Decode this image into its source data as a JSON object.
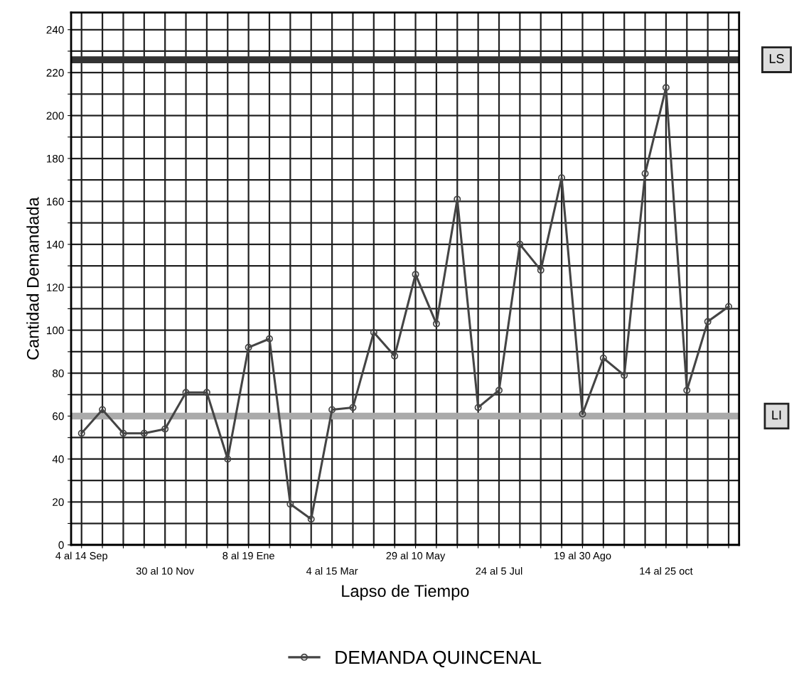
{
  "chart_data": {
    "type": "line",
    "xlabel": "Lapso de Tiempo",
    "ylabel": "Cantidad Demandada",
    "categories": [
      "4 al 14 Sep",
      null,
      null,
      null,
      "30 al 10 Nov",
      null,
      null,
      null,
      "8 al 19 Ene",
      null,
      null,
      null,
      "4 al 15 Mar",
      null,
      null,
      null,
      "29 al 10 May",
      null,
      null,
      null,
      "24 al 5 Jul",
      null,
      null,
      null,
      "19 al 30 Ago",
      null,
      null,
      null,
      "14 al 25 oct",
      null,
      null,
      null
    ],
    "series": [
      {
        "name": "DEMANDA QUINCENAL",
        "color": "#444444",
        "values": [
          52,
          63,
          52,
          52,
          54,
          71,
          71,
          40,
          92,
          96,
          19,
          12,
          63,
          64,
          99,
          88,
          126,
          103,
          161,
          64,
          72,
          140,
          128,
          171,
          61,
          87,
          79,
          173,
          213,
          72,
          104,
          111
        ]
      }
    ],
    "ylim": [
      0,
      248
    ],
    "yticks": [
      0,
      {
        "value": 10,
        "label": null
      },
      20,
      {
        "value": 30,
        "label": null
      },
      40,
      {
        "value": 50,
        "label": null
      },
      60,
      {
        "value": 70,
        "label": null
      },
      80,
      {
        "value": 90,
        "label": null
      },
      100,
      {
        "value": 110,
        "label": null
      },
      120,
      {
        "value": 130,
        "label": null
      },
      140,
      {
        "value": 150,
        "label": null
      },
      160,
      {
        "value": 170,
        "label": null
      },
      180,
      {
        "value": 190,
        "label": null
      },
      200,
      {
        "value": 210,
        "label": null
      },
      220,
      {
        "value": 230,
        "label": null
      },
      240
    ],
    "ref_lines": [
      {
        "axis": "y",
        "value": 226,
        "label": "LS",
        "color": "#333333"
      },
      {
        "axis": "y",
        "value": 60,
        "label": "LI",
        "color": "#aaaaaa"
      }
    ],
    "grid": true,
    "legend": "bottom",
    "marker": "circle",
    "line_style": "solid"
  }
}
